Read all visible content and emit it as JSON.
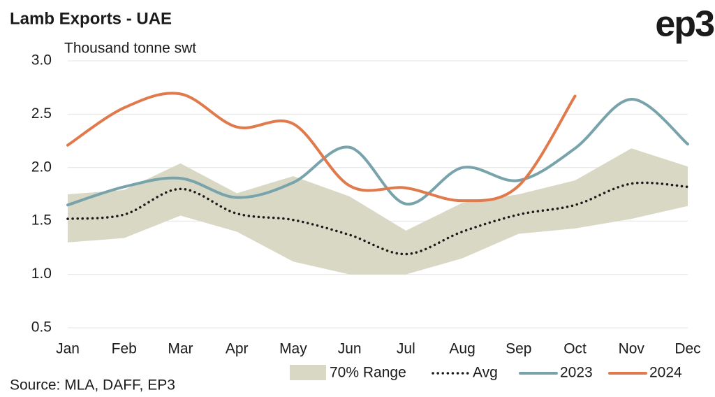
{
  "logo": "ep3",
  "chart_data": {
    "type": "line",
    "title": "Lamb Exports - UAE",
    "subtitle": "Thousand tonne swt",
    "source": "Source: MLA, DAFF, EP3",
    "categories": [
      "Jan",
      "Feb",
      "Mar",
      "Apr",
      "May",
      "Jun",
      "Jul",
      "Aug",
      "Sep",
      "Oct",
      "Nov",
      "Dec"
    ],
    "ylim": [
      0.5,
      3
    ],
    "yticks": [
      {
        "value": 3,
        "label": "3.0"
      },
      2.5,
      {
        "value": 2,
        "label": "2.0"
      },
      1.5,
      {
        "value": 1,
        "label": "1.0"
      },
      0.5
    ],
    "grid": true,
    "range": {
      "name": "70% Range",
      "color": "#d9d8c5",
      "low": [
        1.3,
        1.34,
        1.55,
        1.4,
        1.12,
        1.0,
        1.0,
        1.15,
        1.38,
        1.43,
        1.52,
        1.64
      ],
      "high": [
        1.75,
        1.79,
        2.04,
        1.76,
        1.92,
        1.73,
        1.41,
        1.67,
        1.75,
        1.88,
        2.18,
        2.01
      ]
    },
    "series": [
      {
        "name": "Avg",
        "color": "#1a1a1a",
        "dotted": true,
        "values": [
          1.52,
          1.56,
          1.8,
          1.57,
          1.51,
          1.37,
          1.19,
          1.4,
          1.56,
          1.65,
          1.85,
          1.82
        ]
      },
      {
        "name": "2023",
        "color": "#78a3ab",
        "values": [
          1.65,
          1.82,
          1.9,
          1.72,
          1.86,
          2.19,
          1.66,
          2.0,
          1.88,
          2.18,
          2.64,
          2.22
        ]
      },
      {
        "name": "2024",
        "color": "#e07a4c",
        "values": [
          2.21,
          2.56,
          2.69,
          2.38,
          2.41,
          1.83,
          1.81,
          1.69,
          1.83,
          2.67,
          null,
          null
        ]
      }
    ]
  }
}
